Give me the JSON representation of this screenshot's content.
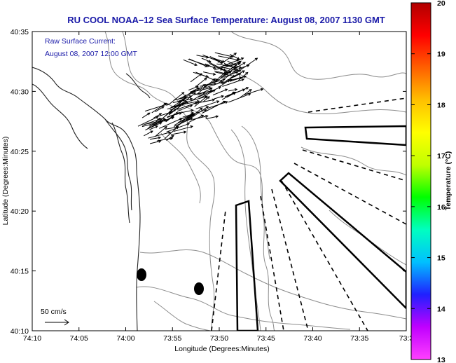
{
  "title": "RU COOL  NOAA–12  Sea Surface Temperature:  August 08, 2007 1130 GMT",
  "annotation": {
    "line1": "Raw Surface Current:",
    "line2": "August 08, 2007 12:00 GMT"
  },
  "scale_label": "50 cm/s",
  "x_axis": {
    "label": "Longitude (Degrees:Minutes)",
    "ticks": [
      "74:10",
      "74:05",
      "74:00",
      "73:55",
      "73:50",
      "73:45",
      "73:40",
      "73:35",
      "73:3"
    ]
  },
  "y_axis": {
    "label": "Latitude (Degrees:Minutes)",
    "ticks": [
      "40:35",
      "40:30",
      "40:25",
      "40:20",
      "40:15",
      "40:10"
    ]
  },
  "colorbar": {
    "label": "Temperature (°C)",
    "ticks": [
      "20",
      "19",
      "18",
      "17",
      "16",
      "15",
      "14",
      "13"
    ],
    "min": 13,
    "max": 20,
    "colors": [
      "#ff40ff",
      "#c000ff",
      "#2020ff",
      "#00c0ff",
      "#00ffc0",
      "#00ff00",
      "#c0ff00",
      "#ffff00",
      "#ffc000",
      "#ff6000",
      "#ff0000",
      "#b00000"
    ]
  }
}
